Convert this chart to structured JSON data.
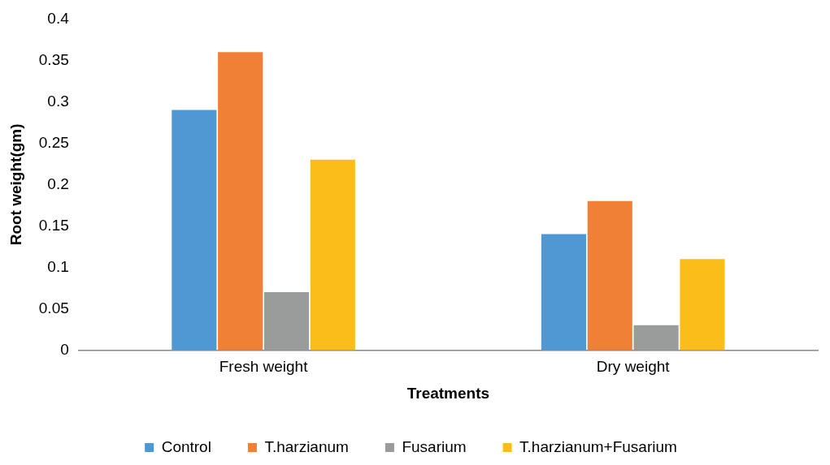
{
  "chart_data": {
    "type": "bar",
    "xlabel": "Treatments",
    "ylabel": "Root weight(gm)",
    "categories": [
      "Fresh weight",
      "Dry weight"
    ],
    "series": [
      {
        "name": "Control",
        "color": "#4f98d4",
        "values": [
          0.29,
          0.14
        ]
      },
      {
        "name": "T.harzianum",
        "color": "#f08035",
        "values": [
          0.36,
          0.18
        ]
      },
      {
        "name": "Fusarium",
        "color": "#9a9b9b",
        "values": [
          0.07,
          0.03
        ]
      },
      {
        "name": "T.harzianum+Fusarium",
        "color": "#fbbd1a",
        "values": [
          0.23,
          0.11
        ]
      }
    ],
    "ylim": [
      0,
      0.4
    ],
    "yticks": [
      0,
      0.05,
      0.1,
      0.15,
      0.2,
      0.25,
      0.3,
      0.35,
      0.4
    ],
    "grid": false,
    "legend": "bottom"
  }
}
